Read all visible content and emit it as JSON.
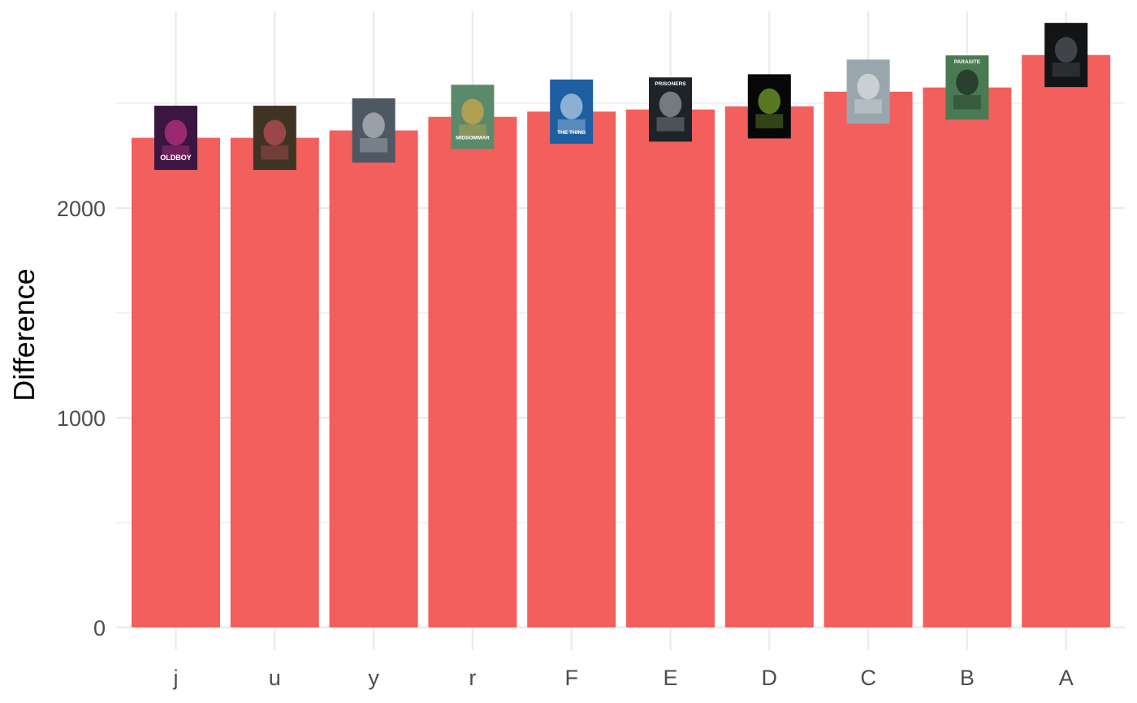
{
  "chart_data": {
    "type": "bar",
    "title": "",
    "xlabel": "",
    "ylabel": "Difference",
    "categories": [
      "j",
      "u",
      "y",
      "r",
      "F",
      "E",
      "D",
      "C",
      "B",
      "A"
    ],
    "values": [
      2335,
      2335,
      2370,
      2435,
      2460,
      2470,
      2485,
      2555,
      2575,
      2730
    ],
    "ylim": [
      -60,
      2930
    ],
    "y_ticks": [
      0,
      1000,
      2000
    ],
    "y_tick_labels": [
      "0",
      "1000",
      "2000"
    ],
    "y_minor_ticks": [
      500,
      1500,
      2500
    ],
    "grid": true,
    "legend": "none",
    "bar_color": "#F25F5C",
    "grid_color": "#EBEBEB",
    "annotations": {
      "type": "poster-images",
      "posters": [
        {
          "category": "j",
          "text": "OLDBOY",
          "background": "#3a1640",
          "accent": "#e83c9a"
        },
        {
          "category": "u",
          "text": "",
          "background": "#3f3423",
          "accent": "#e8566a"
        },
        {
          "category": "y",
          "text": "",
          "background": "#4d5862",
          "accent": "#d9dde0"
        },
        {
          "category": "r",
          "text": "MIDSOMMAR",
          "background": "#5b8a6a",
          "accent": "#f2b23a"
        },
        {
          "category": "F",
          "text": "THE THING",
          "background": "#1d5fa0",
          "accent": "#e8f2ff"
        },
        {
          "category": "E",
          "text": "PRISONERS",
          "background": "#1e2328",
          "accent": "#b9c2c9"
        },
        {
          "category": "D",
          "text": "",
          "background": "#050708",
          "accent": "#9ad43a"
        },
        {
          "category": "C",
          "text": "",
          "background": "#9aa6ad",
          "accent": "#eef2f4"
        },
        {
          "category": "B",
          "text": "PARASITE",
          "background": "#4a7a52",
          "accent": "#111111"
        },
        {
          "category": "A",
          "text": "",
          "background": "#121416",
          "accent": "#666c72"
        }
      ]
    }
  }
}
